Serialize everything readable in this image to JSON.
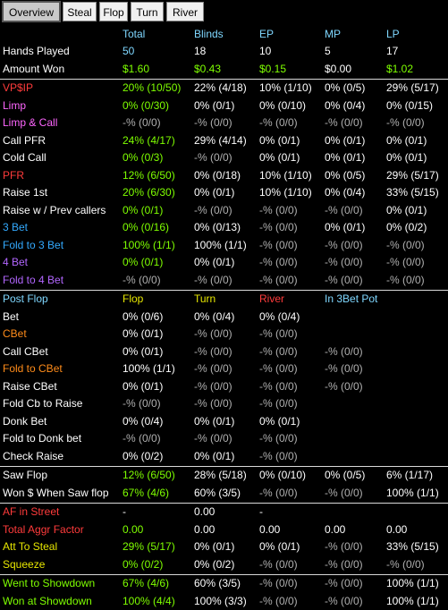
{
  "tabs": [
    {
      "label": "Overview",
      "active": true
    },
    {
      "label": "Steal"
    },
    {
      "label": "Flop"
    },
    {
      "label": "Turn"
    },
    {
      "label": "River"
    }
  ],
  "header": {
    "cols": [
      "",
      "Total",
      "Blinds",
      "EP",
      "MP",
      "LP"
    ],
    "colors": [
      "#ffffff",
      "#7fd7ff",
      "#7fd7ff",
      "#7fd7ff",
      "#7fd7ff",
      "#7fd7ff"
    ]
  },
  "sections": [
    {
      "rows": [
        {
          "label": "Hands Played",
          "color": "#ffffff",
          "values": [
            "50",
            "18",
            "10",
            "5",
            "17"
          ],
          "vcolors": [
            "#7fd7ff",
            "#ffffff",
            "#ffffff",
            "#ffffff",
            "#ffffff"
          ]
        },
        {
          "label": "Amount Won",
          "color": "#ffffff",
          "values": [
            "$1.60",
            "$0.43",
            "$0.15",
            "$0.00",
            "$1.02"
          ],
          "vcolors": [
            "#7fff00",
            "#7fff00",
            "#7fff00",
            "#ffffff",
            "#7fff00"
          ]
        }
      ]
    },
    {
      "rows": [
        {
          "label": "VP$IP",
          "color": "#ff3b3b",
          "values": [
            "20% (10/50)",
            "22% (4/18)",
            "10% (1/10)",
            "0% (0/5)",
            "29% (5/17)"
          ],
          "vcolors": [
            "#7fff00",
            "#ffffff",
            "#ffffff",
            "#ffffff",
            "#ffffff"
          ]
        },
        {
          "label": "Limp",
          "color": "#ff66ff",
          "values": [
            "0% (0/30)",
            "0% (0/1)",
            "0% (0/10)",
            "0% (0/4)",
            "0% (0/15)"
          ],
          "vcolors": [
            "#7fff00",
            "#ffffff",
            "#ffffff",
            "#ffffff",
            "#ffffff"
          ]
        },
        {
          "label": "Limp & Call",
          "color": "#ff66ff",
          "values": [
            "-% (0/0)",
            "-% (0/0)",
            "-% (0/0)",
            "-% (0/0)",
            "-% (0/0)"
          ],
          "vcolors": [
            "#b0b0b0",
            "#b0b0b0",
            "#b0b0b0",
            "#b0b0b0",
            "#b0b0b0"
          ]
        },
        {
          "label": "Call PFR",
          "color": "#ffffff",
          "values": [
            "24% (4/17)",
            "29% (4/14)",
            "0% (0/1)",
            "0% (0/1)",
            "0% (0/1)"
          ],
          "vcolors": [
            "#7fff00",
            "#ffffff",
            "#ffffff",
            "#ffffff",
            "#ffffff"
          ]
        },
        {
          "label": "Cold Call",
          "color": "#ffffff",
          "values": [
            "0% (0/3)",
            "-% (0/0)",
            "0% (0/1)",
            "0% (0/1)",
            "0% (0/1)"
          ],
          "vcolors": [
            "#7fff00",
            "#b0b0b0",
            "#ffffff",
            "#ffffff",
            "#ffffff"
          ]
        },
        {
          "label": "PFR",
          "color": "#ff3b3b",
          "values": [
            "12% (6/50)",
            "0% (0/18)",
            "10% (1/10)",
            "0% (0/5)",
            "29% (5/17)"
          ],
          "vcolors": [
            "#7fff00",
            "#ffffff",
            "#ffffff",
            "#ffffff",
            "#ffffff"
          ]
        },
        {
          "label": "Raise 1st",
          "color": "#ffffff",
          "values": [
            "20% (6/30)",
            "0% (0/1)",
            "10% (1/10)",
            "0% (0/4)",
            "33% (5/15)"
          ],
          "vcolors": [
            "#7fff00",
            "#ffffff",
            "#ffffff",
            "#ffffff",
            "#ffffff"
          ]
        },
        {
          "label": "Raise w / Prev callers",
          "color": "#ffffff",
          "values": [
            "0% (0/1)",
            "-% (0/0)",
            "-% (0/0)",
            "-% (0/0)",
            "0% (0/1)"
          ],
          "vcolors": [
            "#7fff00",
            "#b0b0b0",
            "#b0b0b0",
            "#b0b0b0",
            "#ffffff"
          ]
        },
        {
          "label": "3 Bet",
          "color": "#33aaff",
          "values": [
            "0% (0/16)",
            "0% (0/13)",
            "-% (0/0)",
            "0% (0/1)",
            "0% (0/2)"
          ],
          "vcolors": [
            "#7fff00",
            "#ffffff",
            "#b0b0b0",
            "#ffffff",
            "#ffffff"
          ]
        },
        {
          "label": "Fold to 3 Bet",
          "color": "#33aaff",
          "values": [
            "100% (1/1)",
            "100% (1/1)",
            "-% (0/0)",
            "-% (0/0)",
            "-% (0/0)"
          ],
          "vcolors": [
            "#7fff00",
            "#ffffff",
            "#b0b0b0",
            "#b0b0b0",
            "#b0b0b0"
          ]
        },
        {
          "label": "4 Bet",
          "color": "#b266ff",
          "values": [
            "0% (0/1)",
            "0% (0/1)",
            "-% (0/0)",
            "-% (0/0)",
            "-% (0/0)"
          ],
          "vcolors": [
            "#7fff00",
            "#ffffff",
            "#b0b0b0",
            "#b0b0b0",
            "#b0b0b0"
          ]
        },
        {
          "label": "Fold to 4 Bet",
          "color": "#b266ff",
          "values": [
            "-% (0/0)",
            "-% (0/0)",
            "-% (0/0)",
            "-% (0/0)",
            "-% (0/0)"
          ],
          "vcolors": [
            "#b0b0b0",
            "#b0b0b0",
            "#b0b0b0",
            "#b0b0b0",
            "#b0b0b0"
          ]
        }
      ]
    },
    {
      "header": {
        "cols": [
          "Post Flop",
          "Flop",
          "Turn",
          "River",
          "In 3Bet Pot",
          ""
        ],
        "colors": [
          "#7fd7ff",
          "#e6e600",
          "#e6e600",
          "#ff3b3b",
          "#7fd7ff",
          "#ffffff"
        ]
      },
      "rows": [
        {
          "label": "Bet",
          "color": "#ffffff",
          "values": [
            "0% (0/6)",
            "0% (0/4)",
            "0% (0/4)",
            "",
            ""
          ],
          "vcolors": [
            "#ffffff",
            "#ffffff",
            "#ffffff",
            "#ffffff",
            "#ffffff"
          ]
        },
        {
          "label": "CBet",
          "color": "#ff8c1a",
          "values": [
            "0% (0/1)",
            "-% (0/0)",
            "-% (0/0)",
            "",
            ""
          ],
          "vcolors": [
            "#ffffff",
            "#b0b0b0",
            "#b0b0b0",
            "#ffffff",
            "#ffffff"
          ]
        },
        {
          "label": "Call CBet",
          "color": "#ffffff",
          "values": [
            "0% (0/1)",
            "-% (0/0)",
            "-% (0/0)",
            "-% (0/0)",
            ""
          ],
          "vcolors": [
            "#ffffff",
            "#b0b0b0",
            "#b0b0b0",
            "#b0b0b0",
            "#ffffff"
          ]
        },
        {
          "label": "Fold to CBet",
          "color": "#ff8c1a",
          "values": [
            "100% (1/1)",
            "-% (0/0)",
            "-% (0/0)",
            "-% (0/0)",
            ""
          ],
          "vcolors": [
            "#ffffff",
            "#b0b0b0",
            "#b0b0b0",
            "#b0b0b0",
            "#ffffff"
          ]
        },
        {
          "label": "Raise CBet",
          "color": "#ffffff",
          "values": [
            "0% (0/1)",
            "-% (0/0)",
            "-% (0/0)",
            "-% (0/0)",
            ""
          ],
          "vcolors": [
            "#ffffff",
            "#b0b0b0",
            "#b0b0b0",
            "#b0b0b0",
            "#ffffff"
          ]
        },
        {
          "label": "Fold Cb to Raise",
          "color": "#ffffff",
          "values": [
            "-% (0/0)",
            "-% (0/0)",
            "-% (0/0)",
            "",
            ""
          ],
          "vcolors": [
            "#b0b0b0",
            "#b0b0b0",
            "#b0b0b0",
            "#ffffff",
            "#ffffff"
          ]
        },
        {
          "label": "Donk Bet",
          "color": "#ffffff",
          "values": [
            "0% (0/4)",
            "0% (0/1)",
            "0% (0/1)",
            "",
            ""
          ],
          "vcolors": [
            "#ffffff",
            "#ffffff",
            "#ffffff",
            "#ffffff",
            "#ffffff"
          ]
        },
        {
          "label": "Fold to Donk bet",
          "color": "#ffffff",
          "values": [
            "-% (0/0)",
            "-% (0/0)",
            "-% (0/0)",
            "",
            ""
          ],
          "vcolors": [
            "#b0b0b0",
            "#b0b0b0",
            "#b0b0b0",
            "#ffffff",
            "#ffffff"
          ]
        },
        {
          "label": "Check Raise",
          "color": "#ffffff",
          "values": [
            "0% (0/2)",
            "0% (0/1)",
            "-% (0/0)",
            "",
            ""
          ],
          "vcolors": [
            "#ffffff",
            "#ffffff",
            "#b0b0b0",
            "#ffffff",
            "#ffffff"
          ]
        }
      ]
    },
    {
      "rows": [
        {
          "label": "Saw Flop",
          "color": "#ffffff",
          "values": [
            "12% (6/50)",
            "28% (5/18)",
            "0% (0/10)",
            "0% (0/5)",
            "6% (1/17)"
          ],
          "vcolors": [
            "#7fff00",
            "#ffffff",
            "#ffffff",
            "#ffffff",
            "#ffffff"
          ]
        },
        {
          "label": "Won $ When Saw flop",
          "color": "#ffffff",
          "values": [
            "67% (4/6)",
            "60% (3/5)",
            "-% (0/0)",
            "-% (0/0)",
            "100% (1/1)"
          ],
          "vcolors": [
            "#7fff00",
            "#ffffff",
            "#b0b0b0",
            "#b0b0b0",
            "#ffffff"
          ]
        }
      ]
    },
    {
      "rows": [
        {
          "label": "AF in Street",
          "color": "#ff3b3b",
          "values": [
            "-",
            "0.00",
            "-",
            "",
            ""
          ],
          "vcolors": [
            "#ffffff",
            "#ffffff",
            "#ffffff",
            "#ffffff",
            "#ffffff"
          ]
        },
        {
          "label": "Total Aggr Factor",
          "color": "#ff3b3b",
          "values": [
            "0.00",
            "0.00",
            "0.00",
            "0.00",
            "0.00"
          ],
          "vcolors": [
            "#7fff00",
            "#ffffff",
            "#ffffff",
            "#ffffff",
            "#ffffff"
          ]
        },
        {
          "label": "Att To Steal",
          "color": "#e6e600",
          "values": [
            "29% (5/17)",
            "0% (0/1)",
            "0% (0/1)",
            "-% (0/0)",
            "33% (5/15)"
          ],
          "vcolors": [
            "#7fff00",
            "#ffffff",
            "#ffffff",
            "#b0b0b0",
            "#ffffff"
          ]
        },
        {
          "label": "Squeeze",
          "color": "#e6e600",
          "values": [
            "0% (0/2)",
            "0% (0/2)",
            "-% (0/0)",
            "-% (0/0)",
            "-% (0/0)"
          ],
          "vcolors": [
            "#7fff00",
            "#ffffff",
            "#b0b0b0",
            "#b0b0b0",
            "#b0b0b0"
          ]
        }
      ]
    },
    {
      "rows": [
        {
          "label": "Went to Showdown",
          "color": "#7fff00",
          "values": [
            "67% (4/6)",
            "60% (3/5)",
            "-% (0/0)",
            "-% (0/0)",
            "100% (1/1)"
          ],
          "vcolors": [
            "#7fff00",
            "#ffffff",
            "#b0b0b0",
            "#b0b0b0",
            "#ffffff"
          ]
        },
        {
          "label": "Won at Showdown",
          "color": "#7fff00",
          "values": [
            "100% (4/4)",
            "100% (3/3)",
            "-% (0/0)",
            "-% (0/0)",
            "100% (1/1)"
          ],
          "vcolors": [
            "#7fff00",
            "#ffffff",
            "#b0b0b0",
            "#b0b0b0",
            "#ffffff"
          ]
        }
      ]
    }
  ]
}
